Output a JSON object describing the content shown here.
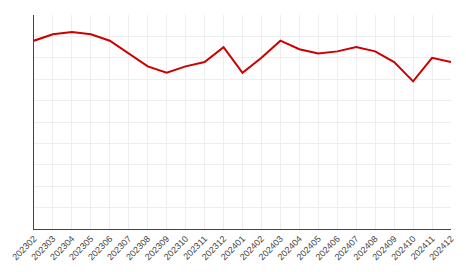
{
  "chart_data": {
    "type": "line",
    "categories": [
      "202302",
      "202303",
      "202304",
      "202305",
      "202306",
      "202307",
      "202308",
      "202309",
      "202310",
      "202311",
      "202312",
      "202401",
      "202402",
      "202403",
      "202404",
      "202405",
      "202406",
      "202407",
      "202408",
      "202409",
      "202410",
      "202411",
      "202412"
    ],
    "values": [
      88,
      91,
      92,
      91,
      88,
      82,
      76,
      73,
      76,
      78,
      85,
      73,
      80,
      88,
      84,
      82,
      83,
      85,
      83,
      78,
      69,
      80,
      78
    ],
    "color": "#cc0000",
    "ylim": [
      0,
      100
    ],
    "yticks": [
      10,
      20,
      30,
      40,
      50,
      60,
      70,
      80,
      90,
      100
    ],
    "grid": true,
    "tick_labels": "x"
  }
}
